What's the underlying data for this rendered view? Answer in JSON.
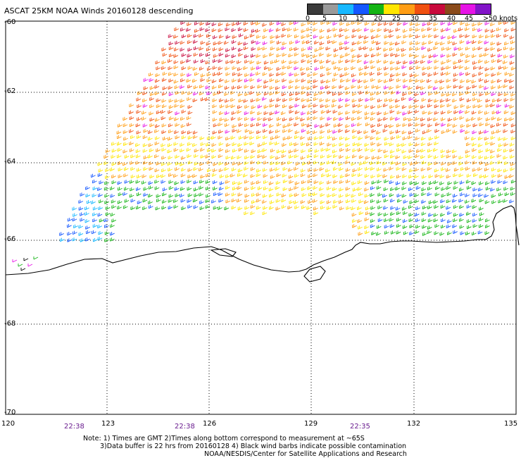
{
  "header": {
    "title": "ASCAT 25KM NOAA Winds 20160128 descending"
  },
  "colorbar": {
    "labels": [
      "0",
      "5",
      "10",
      "15",
      "20",
      "25",
      "30",
      "35",
      "40",
      "45",
      ">50 knots"
    ],
    "colors": [
      "#3a3a3a",
      "#9a9a9a",
      "#17b8ff",
      "#1457ff",
      "#14b414",
      "#ffe600",
      "#ff9d14",
      "#f05010",
      "#c80a3c",
      "#8a4a1a",
      "#e614e6",
      "#8214c8"
    ]
  },
  "axes": {
    "lat_labels": [
      "-60",
      "-62",
      "-64",
      "-66",
      "-68",
      "-70"
    ],
    "lon_labels": [
      "120",
      "123",
      "126",
      "129",
      "132",
      "135"
    ],
    "time_labels": [
      "22:38",
      "22:38",
      "22:35"
    ]
  },
  "notes": [
    "Note: 1) Times are GMT 2)Times along bottom correspond to measurement at ~65S",
    "3)Data buffer is 22 hrs from 20160128 4) Black wind barbs indicate possible contamination",
    "NOAA/NESDIS/Center for Satellite Applications and Research"
  ]
}
